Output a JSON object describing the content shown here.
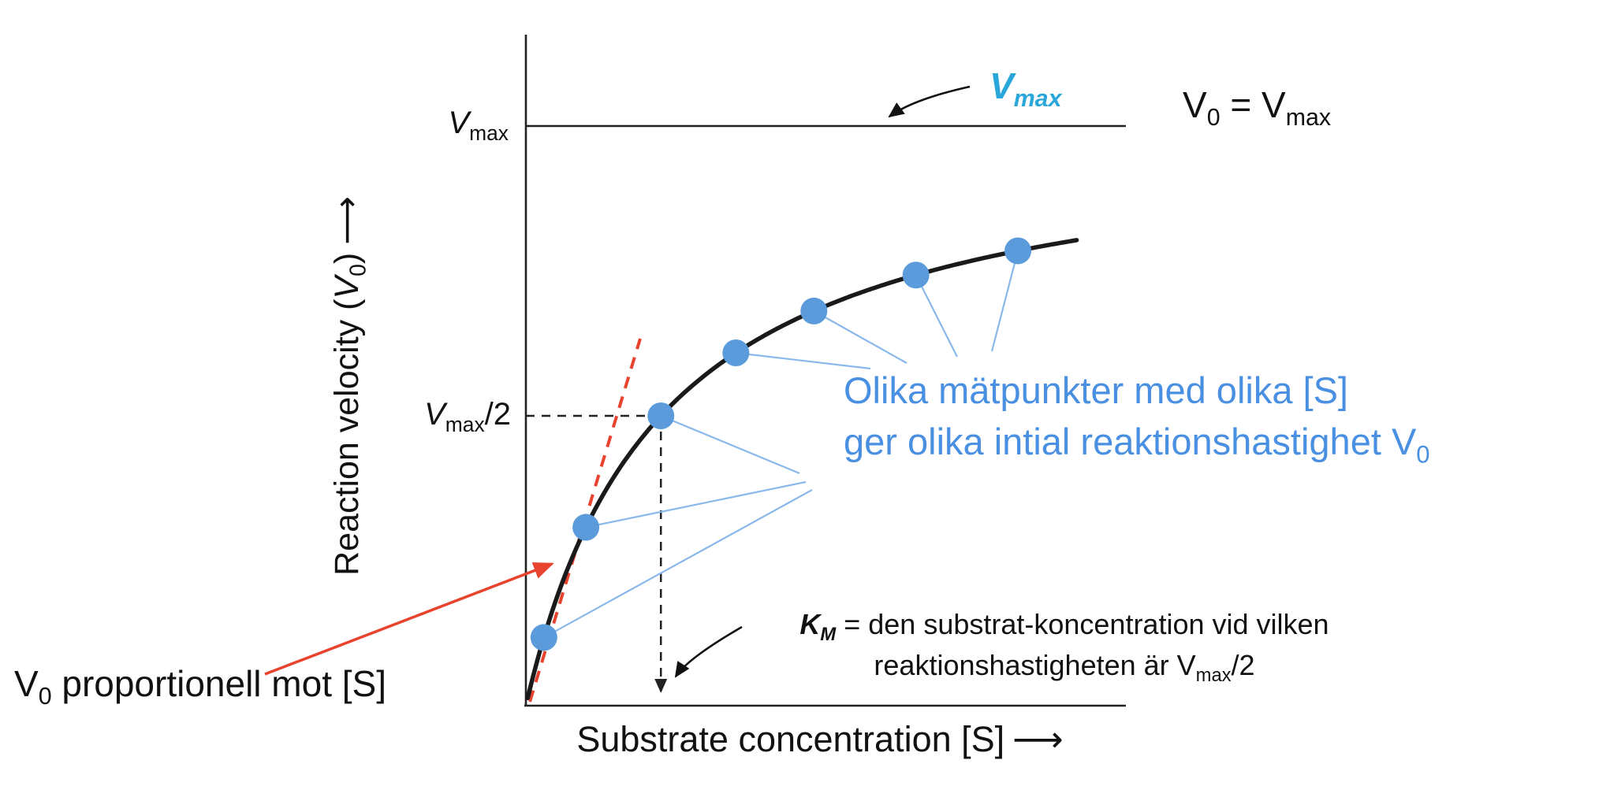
{
  "colors": {
    "curve": "#1a1a1a",
    "axis": "#222222",
    "dot": "#5b9bdb",
    "leader": "#8ab8ea",
    "note_blue": "#4a90e2",
    "vmax_cyan": "#2aa7da",
    "red": "#e8432f",
    "dashed": "#222222"
  },
  "chart_data": {
    "type": "line",
    "model": "michaelis-menten",
    "title": "",
    "xlabel": "Substrate concentration [S]",
    "ylabel": "Reaction velocity (V0)",
    "x_range_units": [
      0,
      10
    ],
    "vmax": 1.0,
    "km": 2.25,
    "curve_s_end": 9.2,
    "data_points_s": [
      0.3,
      1.0,
      2.25,
      3.5,
      4.8,
      6.5,
      8.2
    ],
    "reference_levels": [
      "Vmax",
      "Vmax/2"
    ],
    "annotations": [
      "Vmax asymptote horizontal line",
      "dashed level at Vmax/2 meeting dashed vertical at Km",
      "red dashed initial-slope tangent near origin"
    ]
  },
  "labels": {
    "vmax": {
      "v": "V",
      "sub": "max"
    },
    "vmax_half": {
      "v": "V",
      "sub": "max",
      "suffix": "/2"
    },
    "vmax_callout": {
      "v": "V",
      "sub": "max"
    },
    "v0_eq_vmax": {
      "v1": "V",
      "sub1": "0",
      "eq": " = ",
      "v2": "V",
      "sub2": "max"
    },
    "note_line1": "Olika mätpunkter med olika [S]",
    "note_line2": "ger olika intial reaktionshastighet V",
    "note_line2_sub": "0",
    "km_line1": {
      "k": "K",
      "sub": "M",
      "rest": " = den substrat-koncentration vid vilken"
    },
    "km_line2": {
      "pre": "reaktionshastigheten är V",
      "sub": "max",
      "post": "/2"
    },
    "v0_prop": {
      "v": "V",
      "sub": "0",
      "rest": " proportionell mot [S]"
    },
    "x_axis": {
      "text": "Substrate concentration [S]",
      "arrow": "⟶"
    },
    "y_axis": {
      "pre": "Reaction velocity (",
      "v": "V",
      "sub": "0",
      "post": ")",
      "arrow": "⟶"
    }
  }
}
